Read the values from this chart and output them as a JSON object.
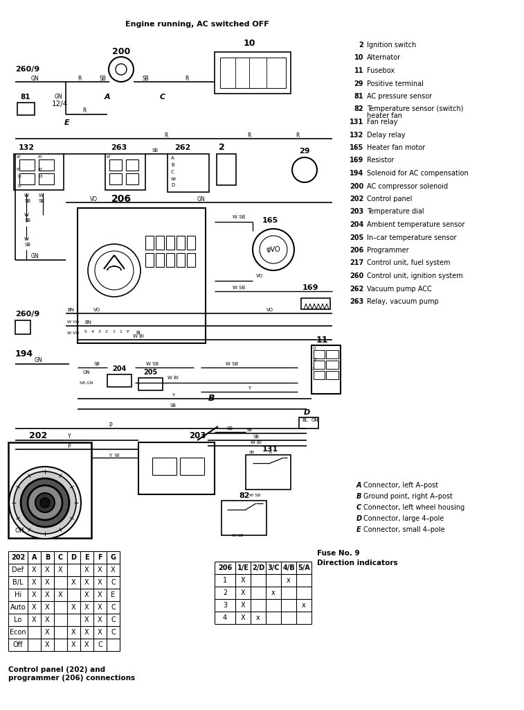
{
  "title": "Engine running, AC switched OFF",
  "bg_color": "#ffffff",
  "legend_items": [
    [
      "2",
      "Ignition switch"
    ],
    [
      "10",
      "Alternator"
    ],
    [
      "11",
      "Fusebox"
    ],
    [
      "29",
      "Positive terminal"
    ],
    [
      "81",
      "AC pressure sensor"
    ],
    [
      "82",
      "Temperature sensor (switch)\nheater fan"
    ],
    [
      "131",
      "Fan relay"
    ],
    [
      "132",
      "Delay relay"
    ],
    [
      "165",
      "Heater fan motor"
    ],
    [
      "169",
      "Resistor"
    ],
    [
      "194",
      "Solenoid for AC compensation"
    ],
    [
      "200",
      "AC compressor solenoid"
    ],
    [
      "202",
      "Control panel"
    ],
    [
      "203",
      "Temperature dial"
    ],
    [
      "204",
      "Ambient temperature sensor"
    ],
    [
      "205",
      "In–car temperature sensor"
    ],
    [
      "206",
      "Programmer"
    ],
    [
      "217",
      "Control unit, fuel system"
    ],
    [
      "260",
      "Control unit, ignition system"
    ],
    [
      "262",
      "Vacuum pump ACC"
    ],
    [
      "263",
      "Relay, vacuum pump"
    ]
  ],
  "connector_legend": [
    [
      "A",
      "Connector, left A–post"
    ],
    [
      "B",
      "Ground point, right A–post"
    ],
    [
      "C",
      "Connector, left wheel housing"
    ],
    [
      "D",
      "Connector, large 4–pole"
    ],
    [
      "E",
      "Connector, small 4–pole"
    ]
  ],
  "table_202": {
    "headers": [
      "202",
      "A",
      "B",
      "C",
      "D",
      "E",
      "F",
      "G"
    ],
    "rows": [
      [
        "Def",
        "X",
        "X",
        "X",
        "",
        "X",
        "X",
        "X"
      ],
      [
        "B/L",
        "X",
        "X",
        "",
        "X",
        "X",
        "X",
        "C"
      ],
      [
        "Hi",
        "X",
        "X",
        "X",
        "",
        "X",
        "X",
        "E"
      ],
      [
        "Auto",
        "X",
        "X",
        "",
        "X",
        "X",
        "X",
        "C"
      ],
      [
        "Lo",
        "X",
        "X",
        "",
        "",
        "X",
        "X",
        "C"
      ],
      [
        "Econ",
        "",
        "X",
        "",
        "X",
        "X",
        "X",
        "C"
      ],
      [
        "Off",
        "",
        "X",
        "",
        "X",
        "X",
        "C",
        ""
      ]
    ]
  },
  "table_206": {
    "title": "Fuse No. 9\nDirection indicators",
    "headers": [
      "206",
      "1/E",
      "2/D",
      "3/C",
      "4/B",
      "5/A"
    ],
    "rows": [
      [
        "1",
        "X",
        "",
        "",
        "x",
        ""
      ],
      [
        "2",
        "X",
        "",
        "x",
        "",
        ""
      ],
      [
        "3",
        "X",
        "",
        "",
        "",
        "x"
      ],
      [
        "4",
        "X",
        "x",
        "",
        "",
        ""
      ]
    ]
  },
  "footnote": "Control panel (202) and\nprogrammer (206) connections"
}
